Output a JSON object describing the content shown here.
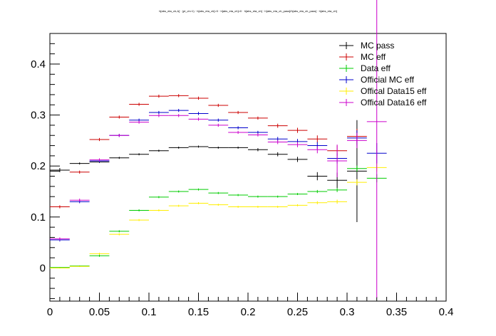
{
  "chart_data": {
    "type": "scatter",
    "title": "h[abs_eta_ch,Δ] · (pt_ch>1) · h[abs_eta_ch]>0 · h[abs_eta_ch]>0 · h[abs_eta_ch] · h[abs_eta_ch_pass]/h[abs_eta_ch_pass] · h[abs_eta_ch]",
    "xlabel": "",
    "ylabel": "",
    "xlim": [
      0,
      0.4
    ],
    "ylim": [
      -0.065,
      0.46
    ],
    "x_ticks": [
      "0",
      "0.05",
      "0.1",
      "0.15",
      "0.2",
      "0.25",
      "0.3",
      "0.35",
      "0.4"
    ],
    "y_ticks": [
      "0",
      "0.1",
      "0.2",
      "0.3",
      "0.4"
    ],
    "grid": false,
    "legend_position": "top-right",
    "series": [
      {
        "name": "MC pass",
        "color": "#000000",
        "x": [
          0.0,
          0.01,
          0.03,
          0.05,
          0.07,
          0.09,
          0.11,
          0.13,
          0.15,
          0.17,
          0.19,
          0.21,
          0.23,
          0.25,
          0.27,
          0.29,
          0.31
        ],
        "y": [
          0.19,
          0.192,
          0.205,
          0.208,
          0.216,
          0.223,
          0.23,
          0.236,
          0.238,
          0.236,
          0.236,
          0.232,
          0.223,
          0.213,
          0.18,
          0.172,
          0.19
        ],
        "yerr": [
          0,
          0.004,
          0.002,
          0.002,
          0.002,
          0.002,
          0.002,
          0.002,
          0.002,
          0.002,
          0.002,
          0.003,
          0.004,
          0.005,
          0.008,
          0.015,
          0.1
        ]
      },
      {
        "name": "MC eff",
        "color": "#cc0000",
        "x": [
          0.01,
          0.03,
          0.05,
          0.07,
          0.09,
          0.11,
          0.13,
          0.15,
          0.17,
          0.19,
          0.21,
          0.23,
          0.25,
          0.27,
          0.29,
          0.31
        ],
        "y": [
          0.12,
          0.188,
          0.252,
          0.296,
          0.321,
          0.337,
          0.338,
          0.333,
          0.319,
          0.305,
          0.294,
          0.279,
          0.27,
          0.253,
          0.23,
          0.258
        ],
        "yerr": [
          0.003,
          0.003,
          0.003,
          0.003,
          0.003,
          0.003,
          0.003,
          0.003,
          0.003,
          0.003,
          0.003,
          0.004,
          0.005,
          0.007,
          0.01,
          0.015
        ]
      },
      {
        "name": "Data eff",
        "color": "#00cc00",
        "x": [
          0.01,
          0.03,
          0.05,
          0.07,
          0.09,
          0.11,
          0.13,
          0.15,
          0.17,
          0.19,
          0.21,
          0.23,
          0.25,
          0.27,
          0.29,
          0.31,
          0.33
        ],
        "y": [
          0.001,
          0.004,
          0.024,
          0.072,
          0.113,
          0.139,
          0.15,
          0.154,
          0.147,
          0.143,
          0.14,
          0.14,
          0.145,
          0.15,
          0.153,
          0.195,
          0.176
        ],
        "yerr": [
          0.001,
          0.001,
          0.002,
          0.002,
          0.002,
          0.002,
          0.002,
          0.002,
          0.002,
          0.002,
          0.002,
          0.002,
          0.002,
          0.003,
          0.004,
          0.006,
          0.008
        ]
      },
      {
        "name": "Official MC eff",
        "color": "#0000cc",
        "x": [
          0.01,
          0.03,
          0.05,
          0.07,
          0.09,
          0.11,
          0.13,
          0.15,
          0.17,
          0.19,
          0.21,
          0.23,
          0.25,
          0.27,
          0.29,
          0.31,
          0.33
        ],
        "y": [
          0.055,
          0.13,
          0.21,
          0.26,
          0.29,
          0.305,
          0.309,
          0.303,
          0.29,
          0.275,
          0.266,
          0.253,
          0.248,
          0.24,
          0.215,
          0.255,
          0.225
        ],
        "yerr": [
          0.003,
          0.003,
          0.003,
          0.003,
          0.003,
          0.003,
          0.003,
          0.003,
          0.003,
          0.003,
          0.003,
          0.004,
          0.005,
          0.007,
          0.01,
          0.015,
          0.02
        ]
      },
      {
        "name": "Offical Data15 eff",
        "color": "#ffee00",
        "x": [
          0.01,
          0.03,
          0.05,
          0.07,
          0.09,
          0.11,
          0.13,
          0.15,
          0.17,
          0.19,
          0.21,
          0.23,
          0.25,
          0.27,
          0.29,
          0.31,
          0.33
        ],
        "y": [
          0.0,
          0.003,
          0.028,
          0.066,
          0.094,
          0.113,
          0.122,
          0.127,
          0.124,
          0.12,
          0.12,
          0.12,
          0.123,
          0.128,
          0.13,
          0.168,
          0.197
        ],
        "yerr": [
          0.001,
          0.001,
          0.002,
          0.002,
          0.002,
          0.002,
          0.002,
          0.002,
          0.002,
          0.002,
          0.002,
          0.002,
          0.002,
          0.003,
          0.004,
          0.006,
          0.008
        ]
      },
      {
        "name": "Offical Data16 eff",
        "color": "#cc00cc",
        "x": [
          0.01,
          0.03,
          0.05,
          0.07,
          0.09,
          0.11,
          0.13,
          0.15,
          0.17,
          0.19,
          0.21,
          0.23,
          0.25,
          0.27,
          0.29,
          0.31,
          0.33
        ],
        "y": [
          0.057,
          0.133,
          0.212,
          0.26,
          0.286,
          0.299,
          0.299,
          0.292,
          0.28,
          0.266,
          0.261,
          0.247,
          0.242,
          0.232,
          0.21,
          0.25,
          0.287
        ],
        "yerr": [
          0.003,
          0.003,
          0.003,
          0.003,
          0.003,
          0.003,
          0.003,
          0.003,
          0.003,
          0.003,
          0.003,
          0.004,
          0.005,
          0.007,
          0.032,
          0.015,
          0.345
        ]
      }
    ]
  }
}
